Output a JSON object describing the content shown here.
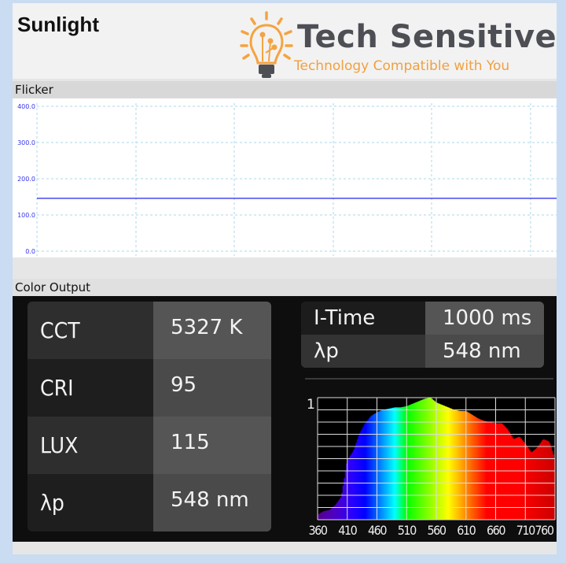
{
  "header": {
    "title": "Sunlight",
    "logo_brand": "Tech Sensitive",
    "logo_tagline": "Technology Compatible with You"
  },
  "flicker": {
    "label": "Flicker",
    "y_ticks": [
      "400.0",
      "300.0",
      "200.0",
      "100.0",
      "0.0"
    ],
    "ylim": [
      0,
      400
    ],
    "level": 146,
    "line_color": "#2222ee"
  },
  "color_output": {
    "label": "Color Output",
    "metrics": [
      {
        "label": "CCT",
        "value": "5327 K"
      },
      {
        "label": "CRI",
        "value": "95"
      },
      {
        "label": "LUX",
        "value": "115"
      },
      {
        "label": "λp",
        "value": "548 nm"
      }
    ],
    "settings": [
      {
        "label": "I-Time",
        "value": "1000 ms"
      },
      {
        "label": "λp",
        "value": "548 nm"
      }
    ]
  },
  "chart_data": {
    "type": "area",
    "y_tick_label": "1",
    "ylim": [
      0,
      1
    ],
    "xlim": [
      360,
      760
    ],
    "x_ticks": [
      "360",
      "410",
      "460",
      "510",
      "560",
      "610",
      "660",
      "710",
      "760"
    ],
    "grid": true,
    "x": [
      360,
      370,
      380,
      390,
      400,
      410,
      420,
      430,
      440,
      450,
      460,
      470,
      480,
      490,
      500,
      510,
      520,
      530,
      540,
      550,
      560,
      570,
      580,
      590,
      600,
      610,
      620,
      630,
      640,
      650,
      660,
      670,
      680,
      690,
      700,
      710,
      720,
      730,
      740,
      750,
      760
    ],
    "y": [
      0.04,
      0.07,
      0.08,
      0.12,
      0.19,
      0.49,
      0.56,
      0.7,
      0.79,
      0.85,
      0.88,
      0.9,
      0.91,
      0.92,
      0.92,
      0.93,
      0.95,
      0.97,
      0.99,
      1.0,
      0.96,
      0.94,
      0.92,
      0.9,
      0.89,
      0.89,
      0.86,
      0.83,
      0.81,
      0.8,
      0.79,
      0.79,
      0.74,
      0.66,
      0.68,
      0.62,
      0.55,
      0.59,
      0.66,
      0.64,
      0.49
    ]
  }
}
